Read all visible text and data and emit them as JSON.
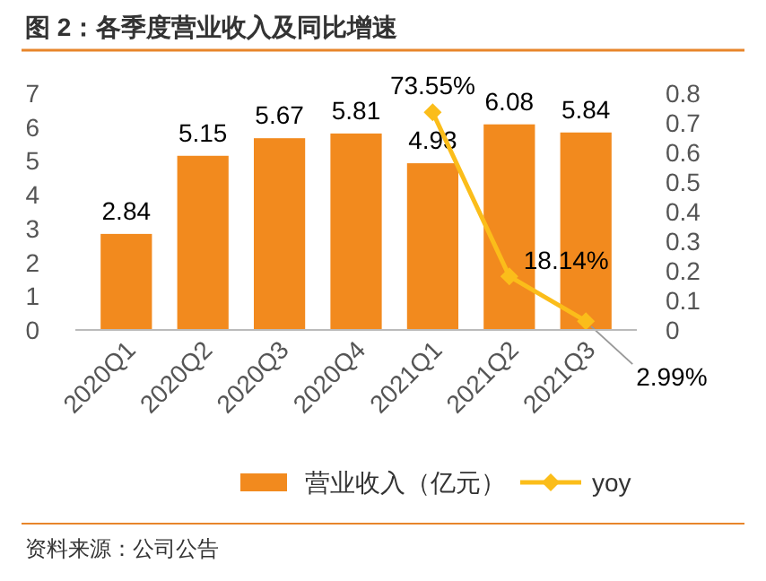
{
  "chart_data": {
    "type": "bar",
    "title": "图 2：各季度营业收入及同比增速",
    "categories": [
      "2020Q1",
      "2020Q2",
      "2020Q3",
      "2020Q4",
      "2021Q1",
      "2021Q2",
      "2021Q3"
    ],
    "series": [
      {
        "name": "营业收入（亿元）",
        "color": "#f28a1e",
        "values": [
          2.84,
          5.15,
          5.67,
          5.81,
          4.93,
          6.08,
          5.84
        ],
        "value_labels": [
          "2.84",
          "5.15",
          "5.67",
          "5.81",
          "4.93",
          "6.08",
          "5.84"
        ]
      },
      {
        "name": "yoy",
        "type": "line",
        "axis": "y2",
        "color": "#fbbd1a",
        "marker": "diamond",
        "values": [
          null,
          null,
          null,
          null,
          0.7355,
          0.1814,
          0.0299
        ],
        "value_labels": [
          null,
          null,
          null,
          null,
          "73.55%",
          "18.14%",
          "2.99%"
        ]
      }
    ],
    "ylim": [
      0,
      7
    ],
    "yticks": [
      0,
      1,
      2,
      3,
      4,
      5,
      6,
      7
    ],
    "y2lim": [
      0,
      0.8
    ],
    "y2ticks": [
      0,
      0.1,
      0.2,
      0.3,
      0.4,
      0.5,
      0.6,
      0.7,
      0.8
    ],
    "legend": "bottom",
    "grid": false,
    "annotations": [
      "资料来源：公司公告"
    ]
  }
}
